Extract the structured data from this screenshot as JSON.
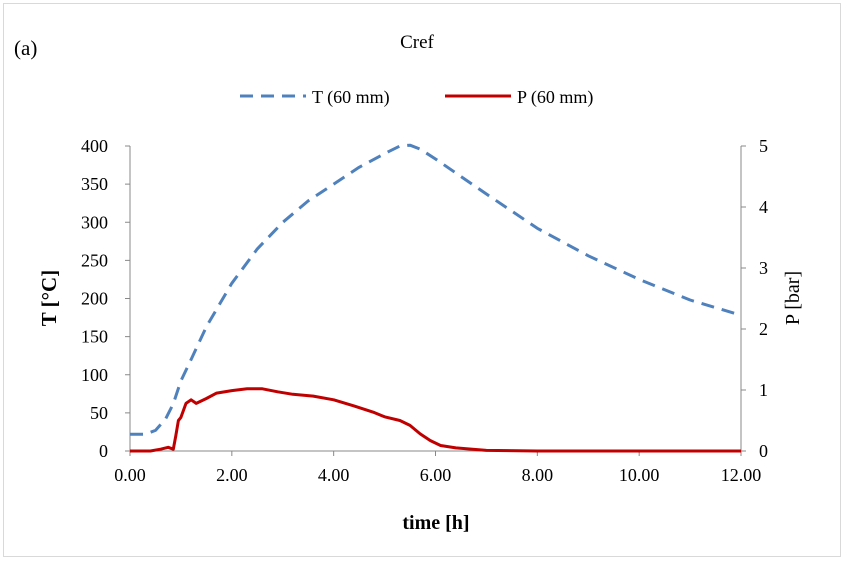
{
  "chart_data": {
    "type": "line",
    "panel_label": "(a)",
    "title": "Cref",
    "xlabel": "time [h]",
    "ylabel_left": "T [°C]",
    "ylabel_right": "P [bar]",
    "xlim": [
      0,
      12
    ],
    "ylim_left": [
      0,
      400
    ],
    "ylim_right": [
      0,
      5
    ],
    "x_ticks": [
      "0.00",
      "2.00",
      "4.00",
      "6.00",
      "8.00",
      "10.00",
      "12.00"
    ],
    "y_ticks_left": [
      "0",
      "50",
      "100",
      "150",
      "200",
      "250",
      "300",
      "350",
      "400"
    ],
    "y_ticks_right": [
      "0",
      "1",
      "2",
      "3",
      "4",
      "5"
    ],
    "grid": false,
    "legend_position": "top",
    "series": [
      {
        "name": "T (60 mm)",
        "axis": "left",
        "color": "#4f81bd",
        "style": "dashed",
        "x": [
          0,
          0.3,
          0.5,
          0.7,
          0.85,
          1.0,
          1.2,
          1.5,
          2.0,
          2.5,
          3.0,
          3.5,
          4.0,
          4.5,
          5.0,
          5.3,
          5.5,
          5.7,
          6.0,
          7.0,
          8.0,
          9.0,
          10.0,
          11.0,
          12.0
        ],
        "values": [
          22,
          22,
          27,
          42,
          62,
          92,
          120,
          163,
          220,
          265,
          300,
          328,
          350,
          372,
          390,
          400,
          401,
          396,
          383,
          337,
          292,
          256,
          225,
          198,
          178
        ]
      },
      {
        "name": "P (60 mm)",
        "axis": "right",
        "color": "#c00000",
        "style": "solid",
        "x": [
          0,
          0.4,
          0.6,
          0.75,
          0.85,
          0.9,
          0.95,
          1.0,
          1.1,
          1.2,
          1.3,
          1.5,
          1.7,
          2.0,
          2.3,
          2.6,
          2.9,
          3.2,
          3.6,
          4.0,
          4.4,
          4.8,
          5.0,
          5.3,
          5.5,
          5.7,
          5.9,
          6.1,
          6.4,
          7.0,
          8.0,
          10.0,
          12.0
        ],
        "values": [
          0.0,
          0.0,
          0.03,
          0.06,
          0.03,
          0.25,
          0.5,
          0.55,
          0.78,
          0.84,
          0.78,
          0.86,
          0.95,
          0.99,
          1.02,
          1.02,
          0.97,
          0.93,
          0.9,
          0.84,
          0.74,
          0.63,
          0.56,
          0.5,
          0.42,
          0.28,
          0.17,
          0.09,
          0.05,
          0.01,
          0.0,
          0.0,
          0.0
        ]
      }
    ]
  }
}
